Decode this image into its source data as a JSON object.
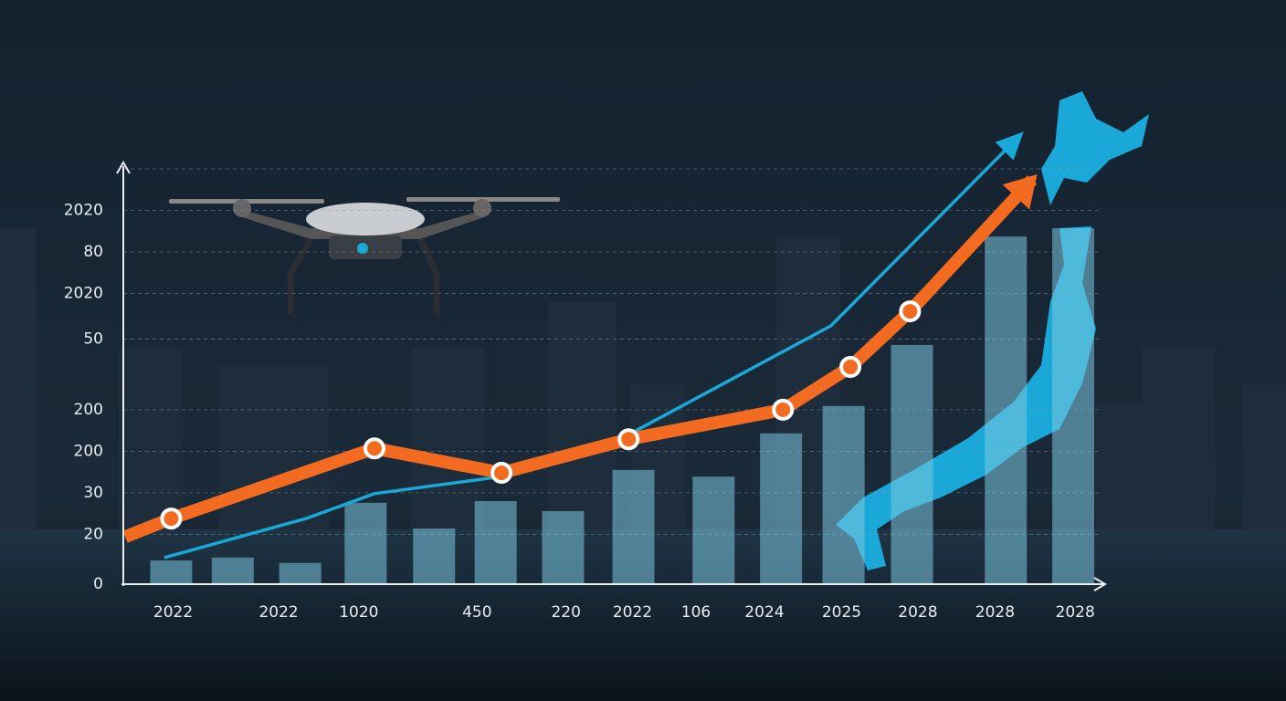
{
  "chart_data": {
    "type": "combo",
    "xlim": [
      0,
      100
    ],
    "ylim": [
      0,
      100
    ],
    "xticks": [
      {
        "value": 5.1,
        "label": "2022"
      },
      {
        "value": 15.9,
        "label": "2022"
      },
      {
        "value": 24.1,
        "label": "1020"
      },
      {
        "value": 36.2,
        "label": "450"
      },
      {
        "value": 45.3,
        "label": "220"
      },
      {
        "value": 52.1,
        "label": "2022"
      },
      {
        "value": 58.6,
        "label": "106"
      },
      {
        "value": 65.6,
        "label": "2024"
      },
      {
        "value": 73.5,
        "label": "2025"
      },
      {
        "value": 81.3,
        "label": "2028"
      },
      {
        "value": 89.2,
        "label": "2028"
      },
      {
        "value": 97.4,
        "label": "2028"
      }
    ],
    "yticks": [
      0,
      {
        "value": 12,
        "label": "20"
      },
      {
        "value": 22,
        "label": "30"
      },
      {
        "value": 32,
        "label": "200"
      },
      {
        "value": 42,
        "label": "200"
      },
      {
        "value": 59,
        "label": "50"
      },
      {
        "value": 70,
        "label": "2020"
      },
      {
        "value": 80,
        "label": "80"
      },
      {
        "value": 90,
        "label": "2020"
      }
    ],
    "grid": true,
    "bars": {
      "color": "#7cc6e0",
      "x": [
        4.9,
        11.2,
        18.1,
        24.8,
        31.8,
        38.1,
        45.0,
        52.2,
        60.4,
        67.3,
        73.7,
        80.7,
        90.3,
        97.2
      ],
      "values": [
        5.7,
        6.4,
        5.1,
        19.6,
        13.4,
        20,
        17.6,
        27.5,
        25.9,
        36.3,
        42.9,
        57.6,
        83.7,
        85.7
      ]
    },
    "series": [
      {
        "type": "line",
        "color": "#1aa8d8",
        "x": [
          4.2,
          18.7,
          25.7,
          38.7,
          51.7,
          72.4,
          91.6
        ],
        "values": [
          6.4,
          15.8,
          21.8,
          25.9,
          36.0,
          62.2,
          107.7
        ]
      },
      {
        "type": "line",
        "color": "#f26b21",
        "x": [
          0.2,
          4.9,
          25.7,
          38.7,
          51.7,
          67.5,
          74.4,
          80.5,
          93.0
        ],
        "values": [
          11.4,
          15.8,
          32.7,
          26.8,
          34.9,
          42.0,
          52.3,
          65.7,
          97.4
        ]
      }
    ]
  }
}
